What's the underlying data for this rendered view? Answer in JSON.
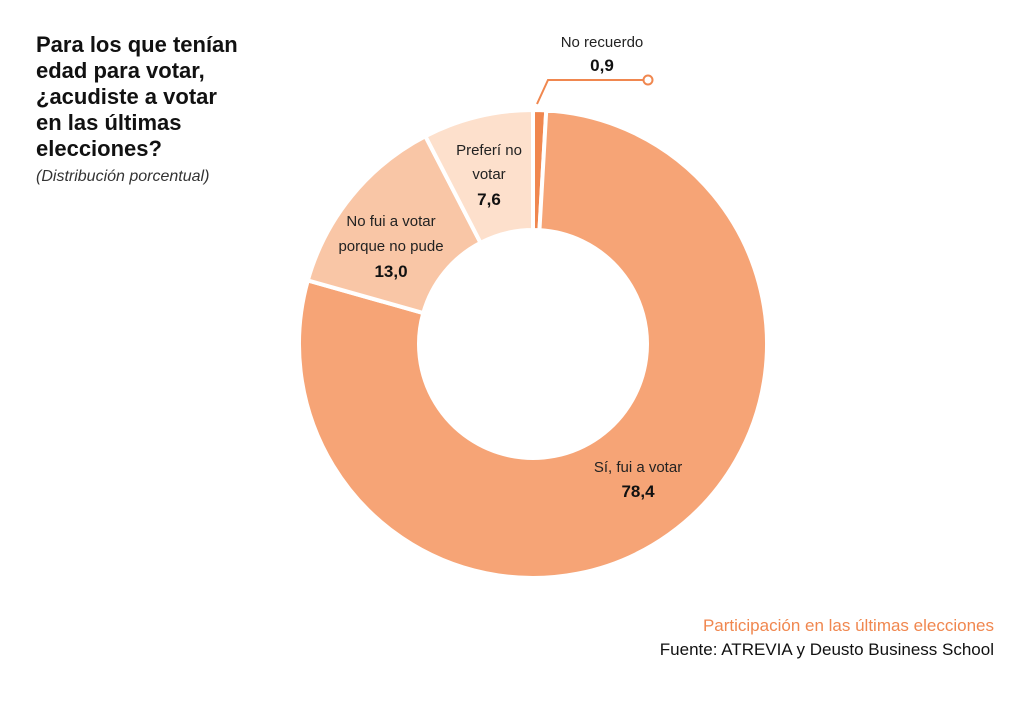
{
  "header": {
    "title": "Para los que tenían\nedad para votar,\n¿acudiste a votar\nen las últimas\nelecciones?",
    "subtitle": "(Distribución porcentual)"
  },
  "footer": {
    "note": "Participación en las últimas elecciones",
    "source": "Fuente: ATREVIA y Deusto Business School"
  },
  "chart_data": {
    "type": "pie",
    "donut": true,
    "slices": [
      {
        "label": "No recuerdo",
        "value": 0.9,
        "value_label": "0,9",
        "color": "#f0874f"
      },
      {
        "label": "Sí, fui a votar",
        "value": 78.4,
        "value_label": "78,4",
        "color": "#f6a476"
      },
      {
        "label": "No fui a votar porque no pude",
        "value": 13.0,
        "value_label": "13,0",
        "color": "#f9c6a6"
      },
      {
        "label": "Preferí no votar",
        "value": 7.6,
        "value_label": "7,6",
        "color": "#fde0cc"
      }
    ],
    "start": "top",
    "direction": "clockwise"
  }
}
